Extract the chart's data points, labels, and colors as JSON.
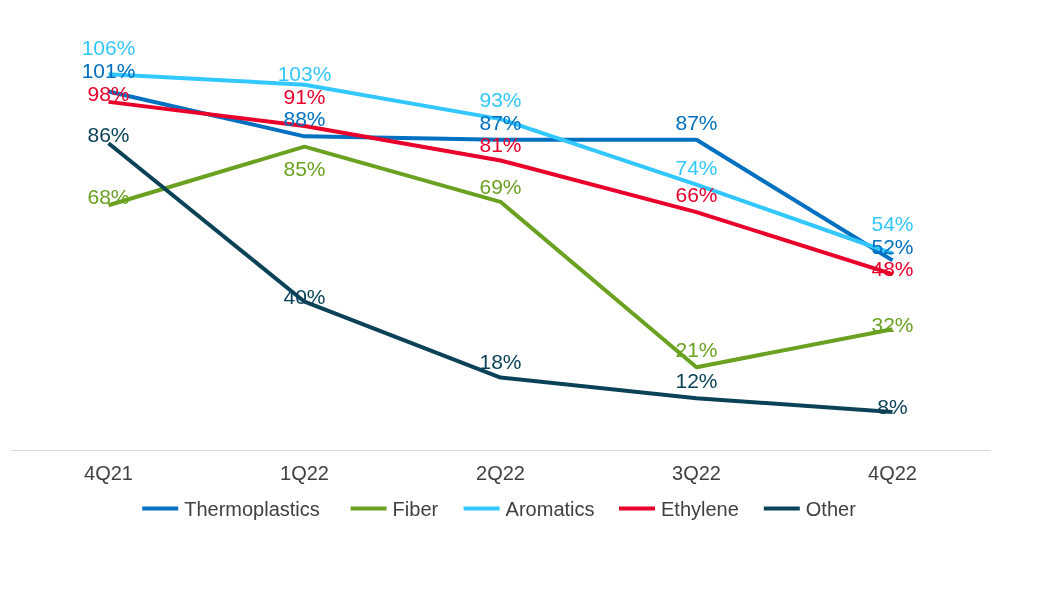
{
  "chart_data": {
    "type": "line",
    "categories": [
      "4Q21",
      "1Q22",
      "2Q22",
      "3Q22",
      "4Q22"
    ],
    "grid": false,
    "legend": "bottom",
    "marker": "none",
    "line_style": "solid",
    "tick_labels": "x",
    "series": [
      {
        "name": "Thermoplastics",
        "color": "#0070c0",
        "values": [
          101,
          88,
          87,
          87,
          52
        ],
        "value_labels": [
          "101%",
          "88%",
          "87%",
          "87%",
          "52%"
        ]
      },
      {
        "name": "Fiber",
        "color": "#6aa121",
        "values": [
          68,
          85,
          69,
          21,
          32
        ],
        "value_labels": [
          "68%",
          "85%",
          "69%",
          "21%",
          "32%"
        ]
      },
      {
        "name": "Aromatics",
        "color": "#33c7ff",
        "values": [
          106,
          103,
          93,
          74,
          54
        ],
        "value_labels": [
          "106%",
          "103%",
          "93%",
          "74%",
          "54%"
        ]
      },
      {
        "name": "Ethylene",
        "color": "#e8002a",
        "values": [
          98,
          91,
          81,
          66,
          48
        ],
        "value_labels": [
          "98%",
          "91%",
          "81%",
          "66%",
          "48%"
        ]
      },
      {
        "name": "Other",
        "color": "#0b4258",
        "values": [
          86,
          40,
          18,
          12,
          8
        ],
        "value_labels": [
          "86%",
          "40%",
          "18%",
          "12%",
          "8%"
        ]
      }
    ]
  }
}
